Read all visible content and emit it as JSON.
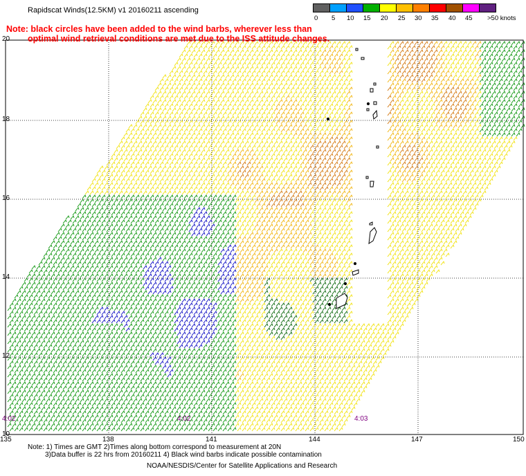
{
  "title": "Rapidscat Winds(12.5KM) v1 20160211 ascending",
  "note_line1": "Note: black circles have been added to the wind barbs, wherever less than",
  "note_line2": "optimal wind retrieval conditions are met due to the ISS attitude changes.",
  "legend": {
    "labels": [
      "0",
      "5",
      "10",
      "15",
      "20",
      "25",
      "30",
      "35",
      "40",
      "45",
      ">50 knots"
    ],
    "colors": [
      "#606060",
      "#00a0ff",
      "#2050ff",
      "#00b000",
      "#ffff00",
      "#ffc000",
      "#ff8000",
      "#ff0000",
      "#a05000",
      "#ff00ff",
      "#602080"
    ]
  },
  "map": {
    "lat_labels": [
      "20",
      "18",
      "16",
      "14",
      "12",
      "10"
    ],
    "lon_labels": [
      "135",
      "138",
      "141",
      "144",
      "147",
      "150"
    ],
    "time_labels": [
      "4:02",
      "4:02",
      "4:03"
    ],
    "barb_colors": {
      "green": "#009000",
      "blue": "#0000c0",
      "yellow": "#f0e000",
      "light_orange": "#f0b000",
      "orange": "#d07000",
      "dark_green": "#006000"
    },
    "island_outline": "#000000"
  },
  "footnote_line1": "Note: 1) Times are GMT 2)Times along bottom correspond to measurement at 20N",
  "footnote_line2": "3)Data buffer is 22 hrs from 20160211 4) Black wind barbs indicate possible contamination",
  "credit": "NOAA/NESDIS/Center for Satellite Applications and Research"
}
